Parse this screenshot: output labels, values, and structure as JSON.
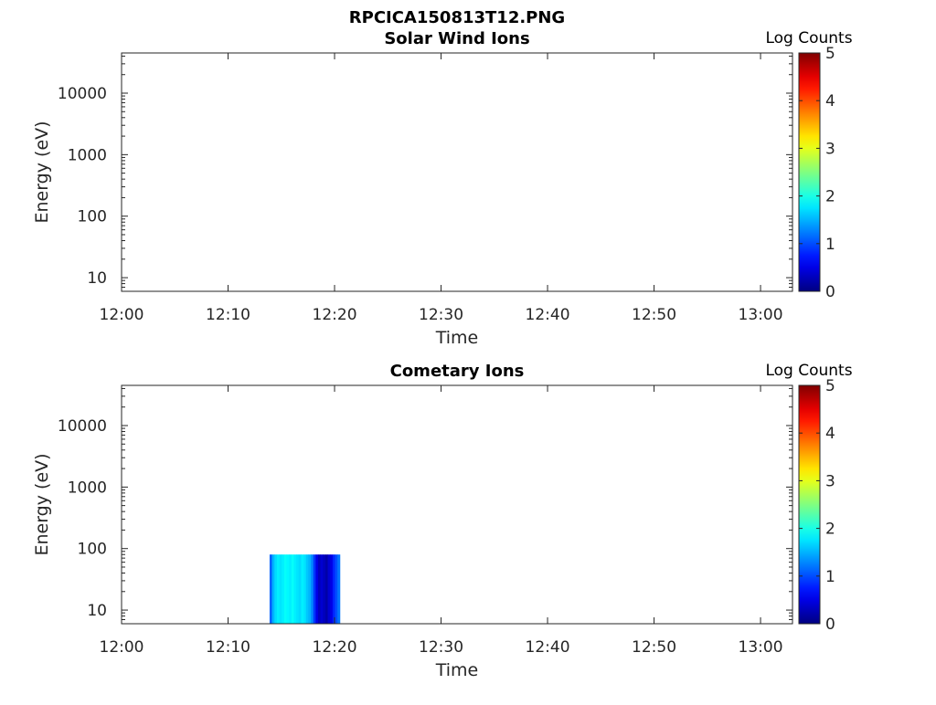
{
  "figure": {
    "title": "RPCICA150813T12.PNG"
  },
  "chart_data": [
    {
      "type": "heatmap",
      "title": "Solar Wind Ions",
      "xlabel": "Time",
      "ylabel": "Energy (eV)",
      "x_ticks": [
        "12:00",
        "12:10",
        "12:20",
        "12:30",
        "12:40",
        "12:50",
        "13:00"
      ],
      "xlim_minutes": [
        0,
        63
      ],
      "y_scale": "log",
      "ylim": [
        6,
        45000
      ],
      "y_ticks": [
        10,
        100,
        1000,
        10000
      ],
      "colorbar": {
        "label": "Log Counts",
        "range": [
          0,
          5
        ],
        "ticks": [
          0,
          1,
          2,
          3,
          4,
          5
        ],
        "colormap": "jet"
      },
      "blocks": []
    },
    {
      "type": "heatmap",
      "title": "Cometary Ions",
      "xlabel": "Time",
      "ylabel": "Energy (eV)",
      "x_ticks": [
        "12:00",
        "12:10",
        "12:20",
        "12:30",
        "12:40",
        "12:50",
        "13:00"
      ],
      "xlim_minutes": [
        0,
        63
      ],
      "y_scale": "log",
      "ylim": [
        6,
        45000
      ],
      "y_ticks": [
        10,
        100,
        1000,
        10000
      ],
      "colorbar": {
        "label": "Log Counts",
        "range": [
          0,
          5
        ],
        "ticks": [
          0,
          1,
          2,
          3,
          4,
          5
        ],
        "colormap": "jet"
      },
      "blocks": [
        {
          "t_start_minutes": 13.9,
          "t_end_minutes": 20.5,
          "energy_min": 6,
          "energy_max": 80,
          "columns_log_counts": [
            1.1,
            1.5,
            1.7,
            1.8,
            1.75,
            1.8,
            1.9,
            1.85,
            1.8,
            1.9,
            1.8,
            1.75,
            1.7,
            1.8,
            1.75,
            1.6,
            1.5,
            1.3,
            0.9,
            0.5,
            0.3,
            0.4,
            0.3,
            0.2,
            0.4,
            0.5,
            0.8,
            1.0,
            1.2
          ]
        }
      ]
    }
  ]
}
